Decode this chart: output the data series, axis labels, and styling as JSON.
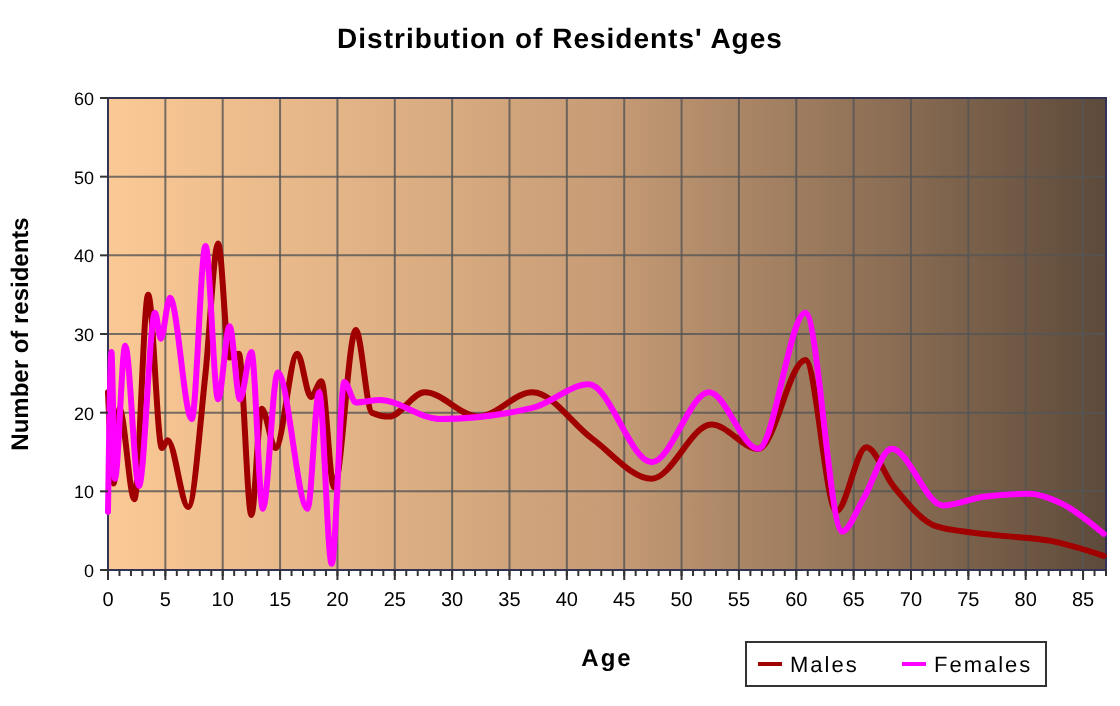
{
  "chart_data": {
    "type": "line",
    "title": "Distribution of Residents' Ages",
    "xlabel": "Age",
    "ylabel": "Number of residents",
    "xlim": [
      0,
      87
    ],
    "xticks": [
      0,
      5,
      10,
      15,
      20,
      25,
      30,
      35,
      40,
      45,
      50,
      55,
      60,
      65,
      70,
      75,
      80,
      85
    ],
    "ylim": [
      0,
      60
    ],
    "yticks": [
      0,
      10,
      20,
      30,
      40,
      50,
      60
    ],
    "grid": true,
    "legend": "bottom right",
    "series": [
      {
        "name": "Males",
        "color": "#a00000",
        "x": [
          0,
          0.5,
          1,
          2.3,
          3.5,
          4.7,
          5.2,
          7,
          8.5,
          9.6,
          10.6,
          11.4,
          12.5,
          13.4,
          14.6,
          16.5,
          17.7,
          18.6,
          19.7,
          21.6,
          23,
          24.5,
          27.6,
          32.3,
          37,
          42.2,
          47.4,
          52.6,
          56.7,
          60.8,
          63.5,
          66.1,
          68.5,
          72.3,
          77.6,
          82.2,
          86.8
        ],
        "values": [
          22.6,
          11,
          20.5,
          9,
          35,
          15.5,
          16.5,
          8,
          25,
          41.5,
          27,
          27.5,
          7,
          20.5,
          15.5,
          27.5,
          22,
          24,
          10.5,
          30.5,
          20,
          19.5,
          22.6,
          19.5,
          22.6,
          16.7,
          11.6,
          18.5,
          15.4,
          26.7,
          7.5,
          15.6,
          10.6,
          5.5,
          4.4,
          3.7,
          1.8
        ]
      },
      {
        "name": "Females",
        "color": "#ff00ff",
        "x": [
          0,
          0.3,
          0.6,
          1.5,
          2.7,
          4.1,
          4.6,
          5.4,
          7.3,
          8.5,
          9.6,
          10.6,
          11.5,
          12.5,
          13.5,
          14.8,
          17.4,
          18.4,
          19.5,
          20.6,
          21.6,
          23.7,
          28.9,
          37,
          41.9,
          47.4,
          52.4,
          56.7,
          60.8,
          64,
          65.8,
          68.3,
          72.8,
          76.3,
          80.3,
          83.2,
          86.8
        ],
        "values": [
          7.4,
          27.7,
          11.6,
          28.5,
          10.7,
          32.7,
          29.4,
          34.6,
          19.2,
          41.2,
          21.7,
          31,
          21.7,
          27.7,
          7.8,
          25.1,
          7.8,
          22.6,
          0.8,
          23.9,
          21.3,
          21.6,
          19.2,
          20.6,
          23.6,
          13.7,
          22.6,
          15.4,
          32.7,
          4.9,
          8.9,
          15.4,
          8.2,
          9.3,
          9.7,
          8.4,
          4.6
        ]
      }
    ]
  }
}
